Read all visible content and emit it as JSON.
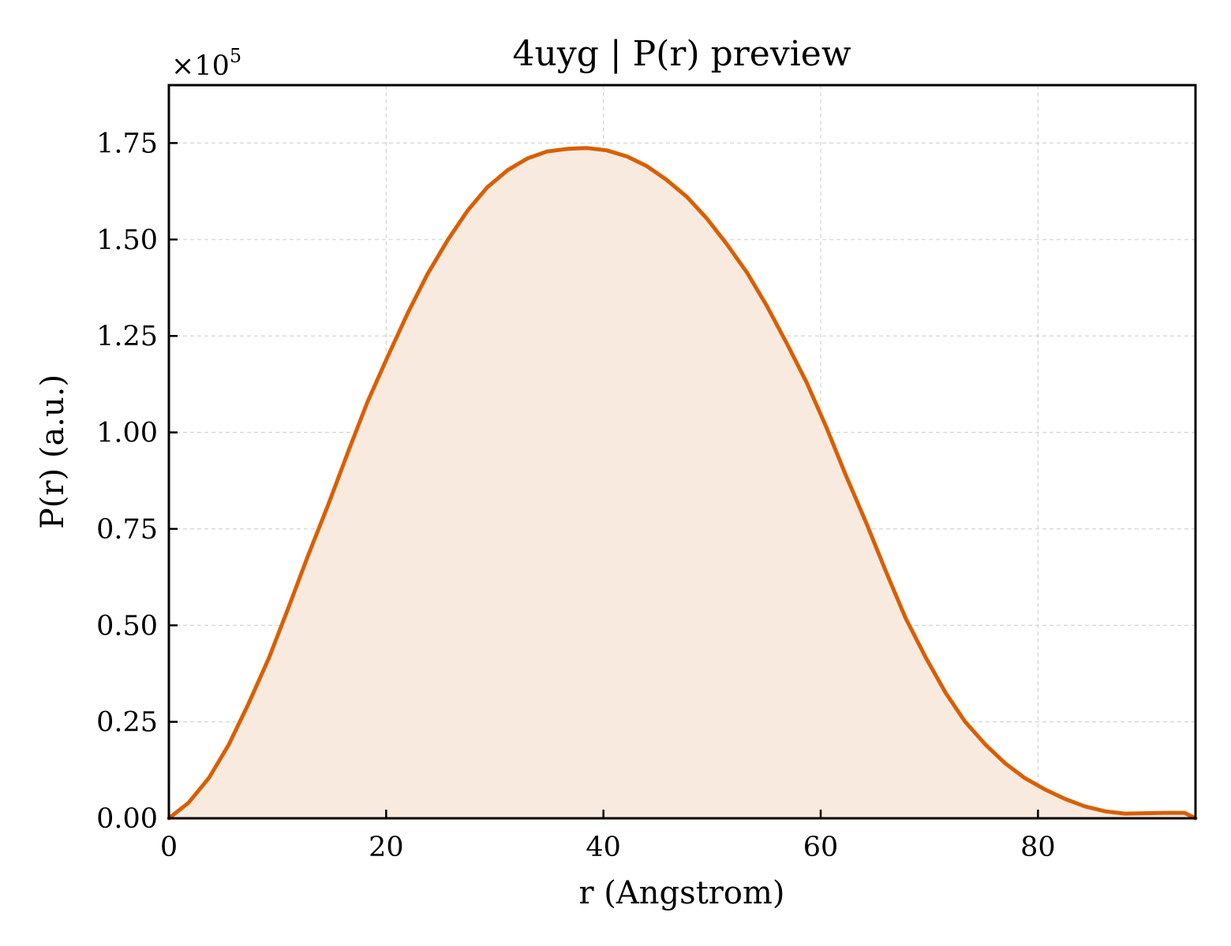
{
  "chart_data": {
    "type": "area",
    "title": "4uyg | P(r) preview",
    "xlabel": "r (Angstrom)",
    "ylabel": "P(r) (a.u.)",
    "y_multiplier": {
      "prefix": "×10",
      "exponent": "5"
    },
    "xlim": [
      0,
      94.5
    ],
    "ylim": [
      0,
      1.9
    ],
    "y_scale_note": "values in units of 1e5",
    "x_ticks": [
      0,
      20,
      40,
      60,
      80
    ],
    "x_tick_labels": [
      "0",
      "20",
      "40",
      "60",
      "80"
    ],
    "y_ticks": [
      0,
      0.25,
      0.5,
      0.75,
      1.0,
      1.25,
      1.5,
      1.75
    ],
    "y_tick_labels": [
      "0.00",
      "0.25",
      "0.50",
      "0.75",
      "1.00",
      "1.25",
      "1.50",
      "1.75"
    ],
    "grid": true,
    "colors": {
      "line": "#d95f02",
      "fill": "#f9eadf",
      "grid": "#d3d3d3",
      "axes": "#000000"
    },
    "series": [
      {
        "x": [
          0,
          1.8,
          3.7,
          5.5,
          7.3,
          9.2,
          11.0,
          12.8,
          14.7,
          16.5,
          18.3,
          20.2,
          22.0,
          23.8,
          25.7,
          27.5,
          29.3,
          31.2,
          33.0,
          34.8,
          36.7,
          38.5,
          40.3,
          42.2,
          44.0,
          45.8,
          47.7,
          49.5,
          51.3,
          53.2,
          55.0,
          56.8,
          58.7,
          60.5,
          62.3,
          64.2,
          66.0,
          67.8,
          69.7,
          71.5,
          73.3,
          75.2,
          77.0,
          78.8,
          80.7,
          82.5,
          84.3,
          86.2,
          88.0,
          89.8,
          91.7,
          93.5,
          94.5
        ],
        "values": [
          0.0,
          0.04,
          0.105,
          0.19,
          0.295,
          0.415,
          0.545,
          0.68,
          0.815,
          0.95,
          1.08,
          1.2,
          1.31,
          1.41,
          1.5,
          1.575,
          1.635,
          1.68,
          1.71,
          1.728,
          1.735,
          1.737,
          1.731,
          1.715,
          1.69,
          1.655,
          1.61,
          1.555,
          1.49,
          1.415,
          1.33,
          1.235,
          1.13,
          1.015,
          0.89,
          0.765,
          0.64,
          0.52,
          0.415,
          0.325,
          0.25,
          0.19,
          0.142,
          0.104,
          0.074,
          0.05,
          0.031,
          0.018,
          0.012,
          0.013,
          0.014,
          0.014,
          0.0
        ]
      }
    ]
  }
}
